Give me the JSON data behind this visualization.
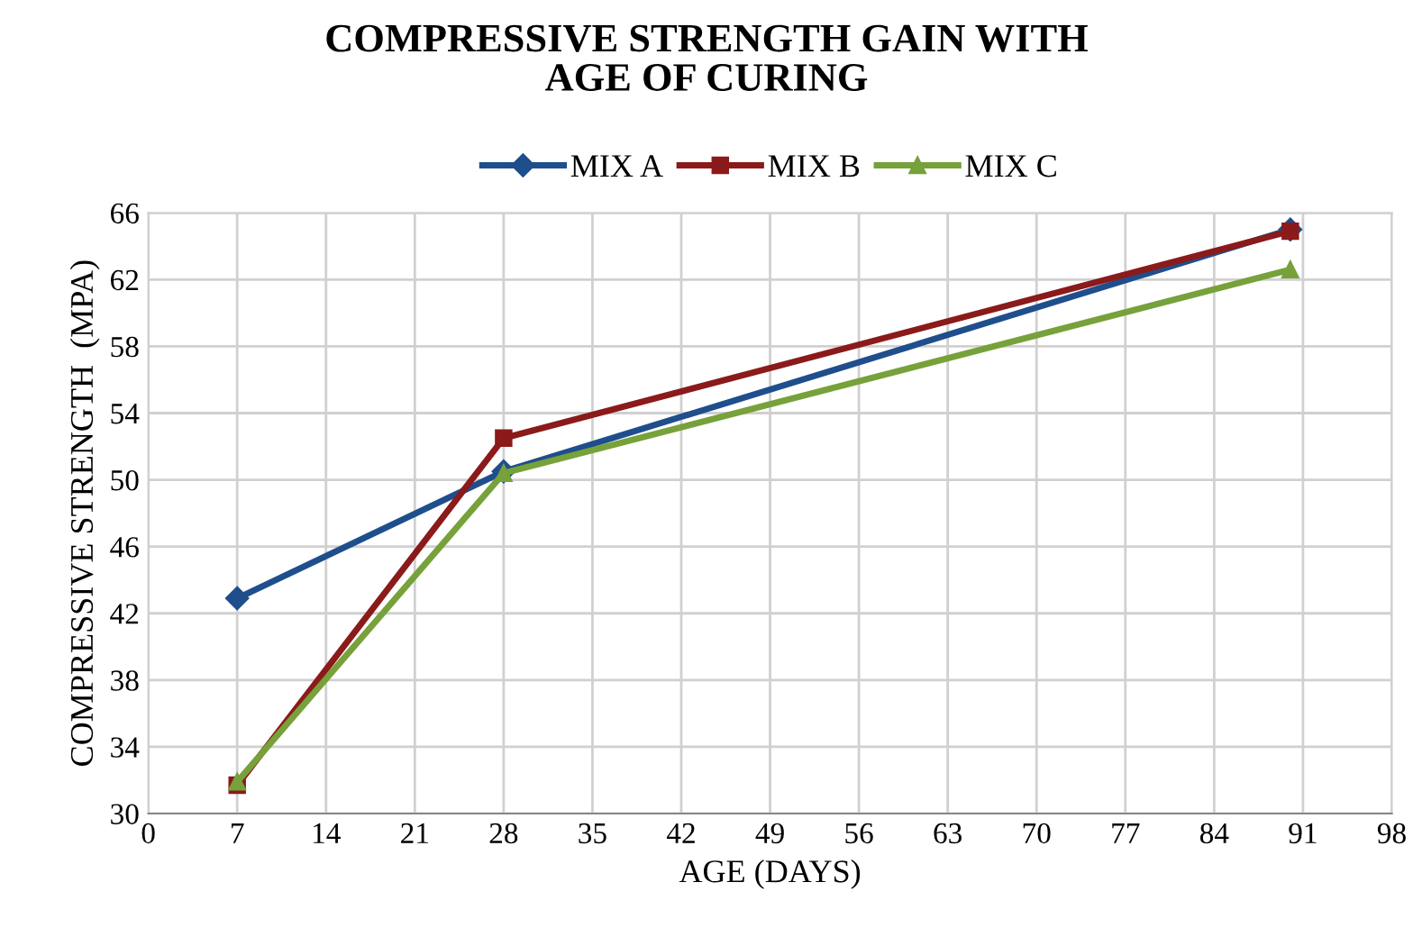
{
  "chart_data": {
    "type": "line",
    "title": "COMPRESSIVE STRENGTH GAIN WITH\nAGE OF CURING",
    "xlabel": "AGE (DAYS)",
    "ylabel": "COMPRESSIVE STRENGTH  (MPA)",
    "x": [
      7,
      28,
      90
    ],
    "series": [
      {
        "name": "MIX A",
        "color": "#1f4e8c",
        "marker": "diamond",
        "values": [
          42.9,
          50.5,
          65.0
        ]
      },
      {
        "name": "MIX B",
        "color": "#8b1a1a",
        "marker": "square",
        "values": [
          31.7,
          52.5,
          64.9
        ]
      },
      {
        "name": "MIX C",
        "color": "#77a13a",
        "marker": "triangle",
        "values": [
          31.9,
          50.4,
          62.6
        ]
      }
    ],
    "xlim": [
      0,
      98
    ],
    "xticks": [
      0,
      7,
      14,
      21,
      28,
      35,
      42,
      49,
      56,
      63,
      70,
      77,
      84,
      91,
      98
    ],
    "ylim": [
      30,
      66
    ],
    "yticks": [
      30,
      34,
      38,
      42,
      46,
      50,
      54,
      58,
      62,
      66
    ],
    "grid": true,
    "legend": "top",
    "line_style": "solid"
  }
}
